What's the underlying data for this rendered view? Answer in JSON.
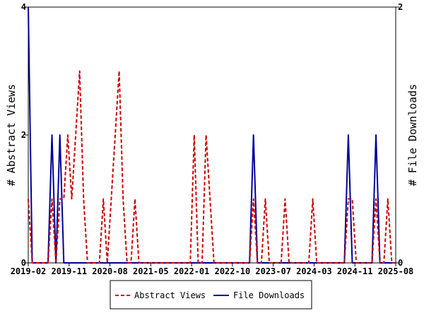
{
  "chart_data": {
    "type": "line",
    "x_tick_labels": [
      "2019-02",
      "2019-11",
      "2020-08",
      "2021-05",
      "2022-01",
      "2022-10",
      "2023-07",
      "2024-03",
      "2024-11",
      "2025-08"
    ],
    "y_left": {
      "label": "# Abstract Views",
      "ylim": [
        0,
        4
      ],
      "ticks": [
        "0",
        "2",
        "4"
      ]
    },
    "y_right": {
      "label": "# File Downloads",
      "ylim": [
        0,
        2
      ],
      "ticks": [
        "0",
        "2"
      ]
    },
    "legend_placement": "bottom-center",
    "series": [
      {
        "name": "Abstract Views",
        "axis": "left",
        "color": "#cc0000",
        "style": "dashed",
        "values": [
          1,
          0,
          0,
          0,
          0,
          0,
          1,
          0,
          1,
          1,
          2,
          1,
          2,
          3,
          1,
          0,
          0,
          0,
          0,
          1,
          0,
          1,
          2,
          3,
          1,
          0,
          0,
          1,
          0,
          0,
          0,
          0,
          0,
          0,
          0,
          0,
          0,
          0,
          0,
          0,
          0,
          0,
          2,
          0,
          0,
          2,
          1,
          0,
          0,
          0,
          0,
          0,
          0,
          0,
          0,
          0,
          0,
          1,
          0,
          0,
          1,
          0,
          0,
          0,
          0,
          1,
          0,
          0,
          0,
          0,
          0,
          0,
          1,
          0,
          0,
          0,
          0,
          0,
          0,
          0,
          0,
          1,
          1,
          0,
          0,
          0,
          0,
          0,
          1,
          0,
          0,
          1,
          0,
          0
        ]
      },
      {
        "name": "File Downloads",
        "axis": "right",
        "color": "#000099",
        "style": "solid",
        "values": [
          2,
          0,
          0,
          0,
          0,
          0,
          1,
          0,
          1,
          0,
          0,
          0,
          0,
          0,
          0,
          0,
          0,
          0,
          0,
          0,
          0,
          0,
          0,
          0,
          0,
          0,
          0,
          0,
          0,
          0,
          0,
          0,
          0,
          0,
          0,
          0,
          0,
          0,
          0,
          0,
          0,
          0,
          0,
          0,
          0,
          0,
          0,
          0,
          0,
          0,
          0,
          0,
          0,
          0,
          0,
          0,
          0,
          1,
          0,
          0,
          0,
          0,
          0,
          0,
          0,
          0,
          0,
          0,
          0,
          0,
          0,
          0,
          0,
          0,
          0,
          0,
          0,
          0,
          0,
          0,
          0,
          1,
          0,
          0,
          0,
          0,
          0,
          0,
          1,
          0,
          0,
          0,
          0,
          0
        ]
      }
    ]
  }
}
